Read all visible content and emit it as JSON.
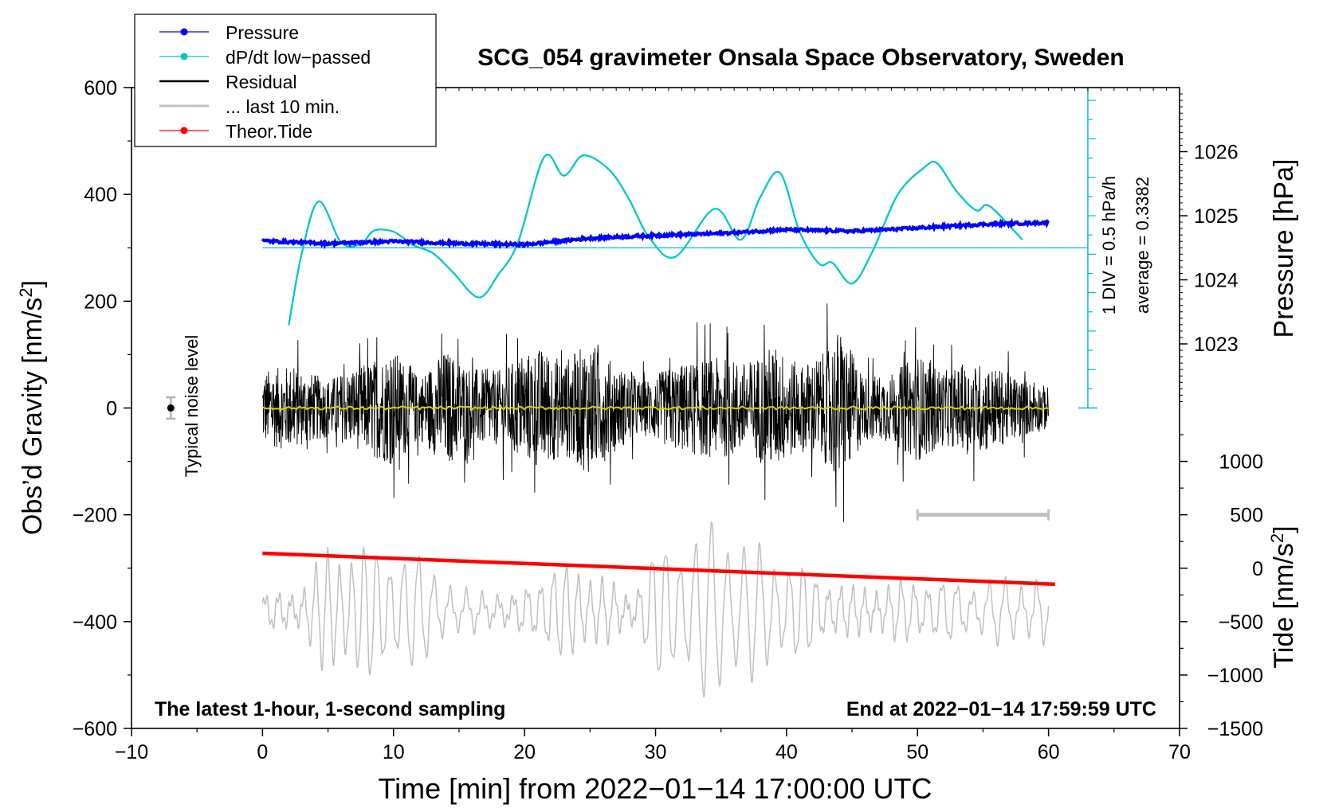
{
  "chart_data": {
    "type": "line",
    "title": "SCG_054 gravimeter Onsala Space Observatory, Sweden",
    "xlabel": "Time [min] from 2022−01−14 17:00:00 UTC",
    "ylabel": "Obs'd Gravity [nm/s²]",
    "ylabel_main": "Obs’d Gravity [nm/s",
    "ylabel_sup": "2",
    "ylabel_close": "]",
    "xlim": [
      -10,
      70
    ],
    "ylim": [
      -600,
      600
    ],
    "x_ticks": [
      -10,
      0,
      10,
      20,
      30,
      40,
      50,
      60,
      70
    ],
    "x_tick_labels": [
      "−10",
      "0",
      "10",
      "20",
      "30",
      "40",
      "50",
      "60",
      "70"
    ],
    "y_ticks": [
      -600,
      -400,
      -200,
      0,
      200,
      400,
      600
    ],
    "y_tick_labels": [
      "−600",
      "−400",
      "−200",
      "0",
      "200",
      "400",
      "600"
    ],
    "pressure_axis": {
      "label": "Pressure [hPa]",
      "ticks": [
        1023,
        1024,
        1025,
        1026
      ],
      "tick_labels": [
        "1023",
        "1024",
        "1025",
        "1026"
      ],
      "value_at_left_0": 1022.0,
      "hpa_per_left_unit": 0.0083333
    },
    "tide_axis": {
      "label_main": "Tide [nm/s",
      "label_sup": "2",
      "label_close": "]",
      "ticks": [
        -1500,
        -1000,
        -500,
        0,
        500,
        1000
      ],
      "tick_labels": [
        "−1500",
        "−1000",
        "−500",
        "0",
        "500",
        "1000"
      ],
      "value_at_left_minus600": -1500,
      "tide_per_left_unit": 5.0
    },
    "annotations": {
      "noise_label": "Typical noise level",
      "noise_marker": {
        "x": -7,
        "y": 0,
        "err": 20
      },
      "scale_bar_text": "1 DIV = 0.5 hPa/h",
      "average_text": "average = 0.3382",
      "footer_left": "The latest 1-hour, 1-second sampling",
      "footer_right": "End at 2022−01−14 17:59:59 UTC",
      "last10_bar": {
        "x_start": 50,
        "x_end": 60,
        "y": -200
      },
      "dpdt_reference_y": 300,
      "dpdt_scale_bar": {
        "x": 63,
        "y_bottom": 0,
        "y_top": 600,
        "div": 36
      }
    },
    "legend": {
      "placement": "top-left",
      "items": [
        {
          "label": "Pressure",
          "color": "#0000ff",
          "marker": true
        },
        {
          "label": "dP/dt low−passed",
          "color": "#00c8c8",
          "marker": true
        },
        {
          "label": "Residual",
          "color": "#000000",
          "marker": false
        },
        {
          "label": "... last 10 min.",
          "color": "#c0c0c0",
          "marker": false
        },
        {
          "label": "Theor.Tide",
          "color": "#ff0000",
          "marker": true
        }
      ]
    },
    "series": [
      {
        "name": "Pressure",
        "color": "#0000ff",
        "x": [
          0,
          5,
          10,
          15,
          20,
          25,
          30,
          35,
          40,
          45,
          50,
          55,
          60
        ],
        "values": [
          313,
          308,
          312,
          308,
          306,
          318,
          323,
          327,
          334,
          331,
          337,
          344,
          347
        ]
      },
      {
        "name": "dP/dt low−passed",
        "color": "#00c8c8",
        "x": [
          2,
          3,
          4.3,
          6,
          7.5,
          8.5,
          10,
          11.5,
          13,
          14.5,
          16.5,
          18,
          19.5,
          21.5,
          23,
          24.5,
          26.5,
          28,
          29.5,
          31.5,
          34.5,
          36.5,
          38,
          39.5,
          41,
          42.5,
          43.5,
          45,
          46.5,
          48.5,
          50.5,
          51.5,
          53,
          54.5,
          55.5,
          58
        ],
        "values": [
          155,
          290,
          387,
          310,
          307,
          332,
          330,
          305,
          290,
          255,
          207,
          250,
          310,
          470,
          435,
          473,
          445,
          390,
          320,
          283,
          373,
          315,
          395,
          440,
          330,
          270,
          272,
          233,
          290,
          400,
          450,
          458,
          405,
          370,
          378,
          315
        ]
      },
      {
        "name": "Residual",
        "color": "#000000",
        "x_range": [
          0,
          60
        ],
        "typical_amplitude": 60,
        "max": 222,
        "min": -215
      },
      {
        "name": "Residual low-passed",
        "color": "#d4d400",
        "x": [
          0,
          60
        ],
        "values": [
          0,
          0
        ]
      },
      {
        "name": "... last 10 min.",
        "color": "#c0c0c0",
        "x_range": [
          0,
          60
        ],
        "center": -380,
        "max": -210,
        "min": -545
      },
      {
        "name": "Theor.Tide",
        "color": "#ff0000",
        "x": [
          0,
          60.5
        ],
        "values": [
          -272,
          -330
        ]
      }
    ]
  }
}
